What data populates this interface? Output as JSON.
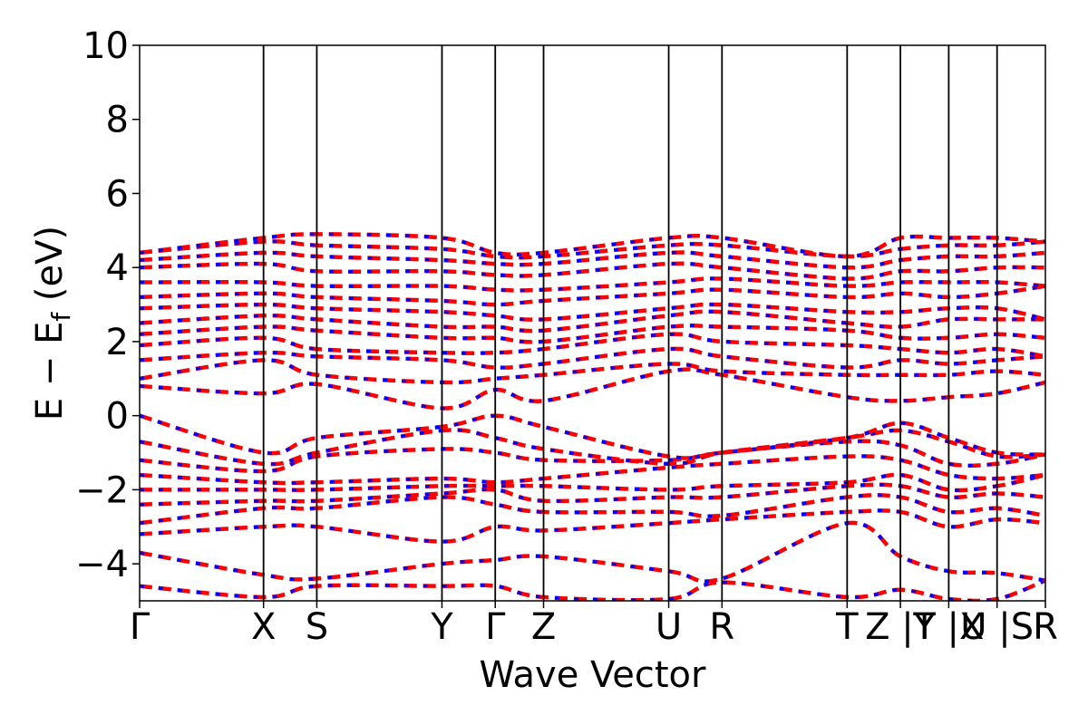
{
  "chart_data": {
    "type": "line",
    "title": "",
    "xlabel": "Wave Vector",
    "ylabel": "E − E_f (eV)",
    "ylabel_main": "E − E",
    "ylabel_sub": "f",
    "ylabel_unit": " (eV)",
    "ylim": [
      -5,
      10
    ],
    "yticks": [
      -4,
      -2,
      0,
      2,
      4,
      6,
      8,
      10
    ],
    "ytick_labels": [
      "−4",
      "−2",
      "0",
      "2",
      "4",
      "6",
      "8",
      "10"
    ],
    "kpath": [
      {
        "label": "Γ",
        "x": 0.0
      },
      {
        "label": "X",
        "x": 1.0
      },
      {
        "label": "S",
        "x": 1.43
      },
      {
        "label": "Y",
        "x": 2.44
      },
      {
        "label": "Γ",
        "x": 2.87
      },
      {
        "label": "Z",
        "x": 3.26
      },
      {
        "label": "U",
        "x": 4.27
      },
      {
        "label": "R",
        "x": 4.7
      },
      {
        "label": "T",
        "x": 5.71
      },
      {
        "label": "Z",
        "x": 6.14
      },
      {
        "label": "|Y",
        "x": 6.14
      },
      {
        "label": "T",
        "x": 6.53
      },
      {
        "label": "|X",
        "x": 6.53
      },
      {
        "label": "U",
        "x": 6.92
      },
      {
        "label": "|S",
        "x": 6.92
      },
      {
        "label": "R",
        "x": 7.31
      }
    ],
    "vlines": [
      1.0,
      1.43,
      2.44,
      2.87,
      3.26,
      4.27,
      4.7,
      5.71,
      6.14,
      6.53,
      6.92
    ],
    "tick_positions": [
      0.0,
      1.0,
      1.43,
      2.44,
      2.87,
      3.26,
      4.27,
      4.7,
      5.71,
      6.14,
      6.53,
      6.92,
      7.31
    ],
    "tick_text": [
      "Γ",
      "X",
      "S",
      "Y",
      "Γ",
      "Z",
      "U",
      "R",
      "T",
      "Z |Y",
      "T |X",
      "U |S",
      "R"
    ],
    "xlim": [
      0.0,
      7.31
    ],
    "series_styles": [
      {
        "color": "#ff0000",
        "width": 4.5,
        "dash": "14,7"
      },
      {
        "color": "#0000ff",
        "width": 3.5,
        "dash": "5,16"
      }
    ],
    "bands": [
      [
        [
          0.0,
          -4.6
        ],
        [
          1.0,
          -4.9
        ],
        [
          1.43,
          -4.6
        ],
        [
          2.44,
          -4.6
        ],
        [
          2.87,
          -4.6
        ],
        [
          3.26,
          -4.9
        ],
        [
          4.27,
          -4.95
        ],
        [
          4.7,
          -4.5
        ],
        [
          5.71,
          -4.9
        ],
        [
          6.14,
          -4.7
        ],
        [
          6.53,
          -4.95
        ],
        [
          6.92,
          -4.95
        ],
        [
          7.31,
          -4.45
        ]
      ],
      [
        [
          0.0,
          -3.7
        ],
        [
          1.0,
          -4.3
        ],
        [
          1.43,
          -4.4
        ],
        [
          2.44,
          -4.0
        ],
        [
          2.87,
          -3.9
        ],
        [
          3.26,
          -3.8
        ],
        [
          4.27,
          -4.2
        ],
        [
          4.7,
          -4.4
        ],
        [
          5.71,
          -2.9
        ],
        [
          6.14,
          -3.8
        ],
        [
          6.53,
          -4.2
        ],
        [
          6.92,
          -4.25
        ],
        [
          7.31,
          -4.45
        ]
      ],
      [
        [
          0.0,
          -3.2
        ],
        [
          1.0,
          -3.0
        ],
        [
          1.43,
          -3.0
        ],
        [
          2.44,
          -3.4
        ],
        [
          2.87,
          -3.0
        ],
        [
          3.26,
          -3.1
        ],
        [
          4.27,
          -2.9
        ],
        [
          4.7,
          -2.8
        ],
        [
          5.71,
          -2.6
        ],
        [
          6.14,
          -2.6
        ],
        [
          6.53,
          -3.0
        ],
        [
          6.92,
          -2.8
        ],
        [
          7.31,
          -2.9
        ]
      ],
      [
        [
          0.0,
          -2.9
        ],
        [
          1.0,
          -2.5
        ],
        [
          1.43,
          -2.5
        ],
        [
          2.44,
          -2.2
        ],
        [
          2.87,
          -2.4
        ],
        [
          3.26,
          -2.6
        ],
        [
          4.27,
          -2.6
        ],
        [
          4.7,
          -2.7
        ],
        [
          5.71,
          -2.2
        ],
        [
          6.14,
          -2.2
        ],
        [
          6.53,
          -2.6
        ],
        [
          6.92,
          -2.5
        ],
        [
          7.31,
          -2.7
        ]
      ],
      [
        [
          0.0,
          -2.4
        ],
        [
          1.0,
          -2.3
        ],
        [
          1.43,
          -2.3
        ],
        [
          2.44,
          -2.1
        ],
        [
          2.87,
          -2.0
        ],
        [
          3.26,
          -2.3
        ],
        [
          4.27,
          -2.2
        ],
        [
          4.7,
          -2.2
        ],
        [
          5.71,
          -1.9
        ],
        [
          6.14,
          -1.9
        ],
        [
          6.53,
          -2.2
        ],
        [
          6.92,
          -2.1
        ],
        [
          7.31,
          -2.2
        ]
      ],
      [
        [
          0.0,
          -2.0
        ],
        [
          1.0,
          -2.0
        ],
        [
          1.43,
          -2.0
        ],
        [
          2.44,
          -1.9
        ],
        [
          2.87,
          -1.9
        ],
        [
          3.26,
          -1.9
        ],
        [
          4.27,
          -2.0
        ],
        [
          4.7,
          -1.9
        ],
        [
          5.71,
          -1.8
        ],
        [
          6.14,
          -1.6
        ],
        [
          6.53,
          -2.0
        ],
        [
          6.92,
          -1.9
        ],
        [
          7.31,
          -1.6
        ]
      ],
      [
        [
          0.0,
          -1.6
        ],
        [
          1.0,
          -1.8
        ],
        [
          1.43,
          -1.8
        ],
        [
          2.44,
          -1.7
        ],
        [
          2.87,
          -1.8
        ],
        [
          3.26,
          -1.7
        ],
        [
          4.27,
          -1.4
        ],
        [
          4.7,
          -1.3
        ],
        [
          5.71,
          -1.1
        ],
        [
          6.14,
          -1.2
        ],
        [
          6.53,
          -1.6
        ],
        [
          6.92,
          -1.7
        ],
        [
          7.31,
          -1.6
        ]
      ],
      [
        [
          0.0,
          -1.2
        ],
        [
          1.0,
          -1.5
        ],
        [
          1.43,
          -1.1
        ],
        [
          2.44,
          -0.9
        ],
        [
          2.87,
          -1.0
        ],
        [
          3.26,
          -1.2
        ],
        [
          4.27,
          -1.2
        ],
        [
          4.7,
          -1.0
        ],
        [
          5.71,
          -0.7
        ],
        [
          6.14,
          -0.8
        ],
        [
          6.53,
          -1.3
        ],
        [
          6.92,
          -1.3
        ],
        [
          7.31,
          -1.05
        ]
      ],
      [
        [
          0.0,
          -0.7
        ],
        [
          1.0,
          -1.3
        ],
        [
          1.43,
          -1.0
        ],
        [
          2.44,
          -0.4
        ],
        [
          2.87,
          -0.6
        ],
        [
          3.26,
          -0.9
        ],
        [
          4.27,
          -1.3
        ],
        [
          4.7,
          -1.0
        ],
        [
          5.71,
          -0.6
        ],
        [
          6.14,
          -0.4
        ],
        [
          6.53,
          -0.7
        ],
        [
          6.92,
          -1.1
        ],
        [
          7.31,
          -1.05
        ]
      ],
      [
        [
          0.0,
          0.0
        ],
        [
          1.0,
          -1.0
        ],
        [
          1.43,
          -0.6
        ],
        [
          2.44,
          -0.3
        ],
        [
          2.87,
          0.0
        ],
        [
          3.26,
          -0.3
        ],
        [
          4.27,
          -1.1
        ],
        [
          4.7,
          -1.0
        ],
        [
          5.71,
          -0.6
        ],
        [
          6.14,
          -0.2
        ],
        [
          6.53,
          -0.6
        ],
        [
          6.92,
          -1.0
        ],
        [
          7.31,
          -1.05
        ]
      ],
      [
        [
          0.0,
          0.8
        ],
        [
          1.0,
          0.6
        ],
        [
          1.43,
          0.85
        ],
        [
          2.44,
          0.2
        ],
        [
          2.87,
          0.7
        ],
        [
          3.26,
          0.4
        ],
        [
          4.27,
          1.2
        ],
        [
          4.7,
          1.1
        ],
        [
          5.71,
          0.5
        ],
        [
          6.14,
          0.4
        ],
        [
          6.53,
          0.5
        ],
        [
          6.92,
          0.6
        ],
        [
          7.31,
          0.9
        ]
      ],
      [
        [
          0.0,
          1.0
        ],
        [
          1.0,
          1.5
        ],
        [
          1.43,
          1.1
        ],
        [
          2.44,
          0.9
        ],
        [
          2.87,
          1.0
        ],
        [
          3.26,
          1.1
        ],
        [
          4.27,
          1.4
        ],
        [
          4.7,
          1.2
        ],
        [
          5.71,
          1.1
        ],
        [
          6.14,
          1.1
        ],
        [
          6.53,
          1.1
        ],
        [
          6.92,
          1.2
        ],
        [
          7.31,
          1.1
        ]
      ],
      [
        [
          0.0,
          1.5
        ],
        [
          1.0,
          1.7
        ],
        [
          1.43,
          1.6
        ],
        [
          2.44,
          1.5
        ],
        [
          2.87,
          1.3
        ],
        [
          3.26,
          1.4
        ],
        [
          4.27,
          1.8
        ],
        [
          4.7,
          1.6
        ],
        [
          5.71,
          1.3
        ],
        [
          6.14,
          1.5
        ],
        [
          6.53,
          1.4
        ],
        [
          6.92,
          1.5
        ],
        [
          7.31,
          1.6
        ]
      ],
      [
        [
          0.0,
          1.9
        ],
        [
          1.0,
          2.1
        ],
        [
          1.43,
          1.8
        ],
        [
          2.44,
          1.7
        ],
        [
          2.87,
          1.7
        ],
        [
          3.26,
          1.8
        ],
        [
          4.27,
          2.2
        ],
        [
          4.7,
          2.0
        ],
        [
          5.71,
          1.9
        ],
        [
          6.14,
          1.8
        ],
        [
          6.53,
          1.7
        ],
        [
          6.92,
          1.8
        ],
        [
          7.31,
          1.6
        ]
      ],
      [
        [
          0.0,
          2.2
        ],
        [
          1.0,
          2.4
        ],
        [
          1.43,
          2.3
        ],
        [
          2.44,
          2.1
        ],
        [
          2.87,
          2.1
        ],
        [
          3.26,
          2.0
        ],
        [
          4.27,
          2.4
        ],
        [
          4.7,
          2.4
        ],
        [
          5.71,
          2.3
        ],
        [
          6.14,
          2.1
        ],
        [
          6.53,
          2.1
        ],
        [
          6.92,
          2.2
        ],
        [
          7.31,
          2.1
        ]
      ],
      [
        [
          0.0,
          2.5
        ],
        [
          1.0,
          2.7
        ],
        [
          1.43,
          2.6
        ],
        [
          2.44,
          2.4
        ],
        [
          2.87,
          2.4
        ],
        [
          3.26,
          2.3
        ],
        [
          4.27,
          2.7
        ],
        [
          4.7,
          2.8
        ],
        [
          5.71,
          2.5
        ],
        [
          6.14,
          2.4
        ],
        [
          6.53,
          2.6
        ],
        [
          6.92,
          2.6
        ],
        [
          7.31,
          2.6
        ]
      ],
      [
        [
          0.0,
          2.9
        ],
        [
          1.0,
          3.0
        ],
        [
          1.43,
          2.9
        ],
        [
          2.44,
          2.8
        ],
        [
          2.87,
          2.7
        ],
        [
          3.26,
          2.6
        ],
        [
          4.27,
          2.9
        ],
        [
          4.7,
          3.0
        ],
        [
          5.71,
          2.8
        ],
        [
          6.14,
          2.8
        ],
        [
          6.53,
          2.9
        ],
        [
          6.92,
          2.9
        ],
        [
          7.31,
          2.6
        ]
      ],
      [
        [
          0.0,
          3.2
        ],
        [
          1.0,
          3.3
        ],
        [
          1.43,
          3.2
        ],
        [
          2.44,
          3.1
        ],
        [
          2.87,
          3.0
        ],
        [
          3.26,
          3.1
        ],
        [
          4.27,
          3.3
        ],
        [
          4.7,
          3.4
        ],
        [
          5.71,
          3.2
        ],
        [
          6.14,
          3.3
        ],
        [
          6.53,
          3.2
        ],
        [
          6.92,
          3.3
        ],
        [
          7.31,
          3.5
        ]
      ],
      [
        [
          0.0,
          3.6
        ],
        [
          1.0,
          3.6
        ],
        [
          1.43,
          3.5
        ],
        [
          2.44,
          3.5
        ],
        [
          2.87,
          3.4
        ],
        [
          3.26,
          3.4
        ],
        [
          4.27,
          3.6
        ],
        [
          4.7,
          3.7
        ],
        [
          5.71,
          3.5
        ],
        [
          6.14,
          3.6
        ],
        [
          6.53,
          3.6
        ],
        [
          6.92,
          3.6
        ],
        [
          7.31,
          3.5
        ]
      ],
      [
        [
          0.0,
          4.0
        ],
        [
          1.0,
          4.1
        ],
        [
          1.43,
          3.9
        ],
        [
          2.44,
          3.9
        ],
        [
          2.87,
          3.8
        ],
        [
          3.26,
          3.8
        ],
        [
          4.27,
          4.1
        ],
        [
          4.7,
          4.0
        ],
        [
          5.71,
          3.7
        ],
        [
          6.14,
          3.9
        ],
        [
          6.53,
          3.9
        ],
        [
          6.92,
          4.0
        ],
        [
          7.31,
          4.0
        ]
      ],
      [
        [
          0.0,
          4.2
        ],
        [
          1.0,
          4.4
        ],
        [
          1.43,
          4.3
        ],
        [
          2.44,
          4.2
        ],
        [
          2.87,
          4.1
        ],
        [
          3.26,
          4.1
        ],
        [
          4.27,
          4.4
        ],
        [
          4.7,
          4.3
        ],
        [
          5.71,
          4.0
        ],
        [
          6.14,
          4.2
        ],
        [
          6.53,
          4.3
        ],
        [
          6.92,
          4.3
        ],
        [
          7.31,
          4.4
        ]
      ],
      [
        [
          0.0,
          4.4
        ],
        [
          1.0,
          4.7
        ],
        [
          1.43,
          4.6
        ],
        [
          2.44,
          4.5
        ],
        [
          2.87,
          4.3
        ],
        [
          3.26,
          4.3
        ],
        [
          4.27,
          4.6
        ],
        [
          4.7,
          4.6
        ],
        [
          5.71,
          4.3
        ],
        [
          6.14,
          4.5
        ],
        [
          6.53,
          4.6
        ],
        [
          6.92,
          4.6
        ],
        [
          7.31,
          4.7
        ]
      ],
      [
        [
          0.0,
          4.4
        ],
        [
          1.0,
          4.8
        ],
        [
          1.43,
          4.9
        ],
        [
          2.44,
          4.8
        ],
        [
          2.87,
          4.4
        ],
        [
          3.26,
          4.4
        ],
        [
          4.27,
          4.8
        ],
        [
          4.7,
          4.8
        ],
        [
          5.71,
          4.3
        ],
        [
          6.14,
          4.8
        ],
        [
          6.53,
          4.8
        ],
        [
          6.92,
          4.8
        ],
        [
          7.31,
          4.7
        ]
      ]
    ]
  }
}
